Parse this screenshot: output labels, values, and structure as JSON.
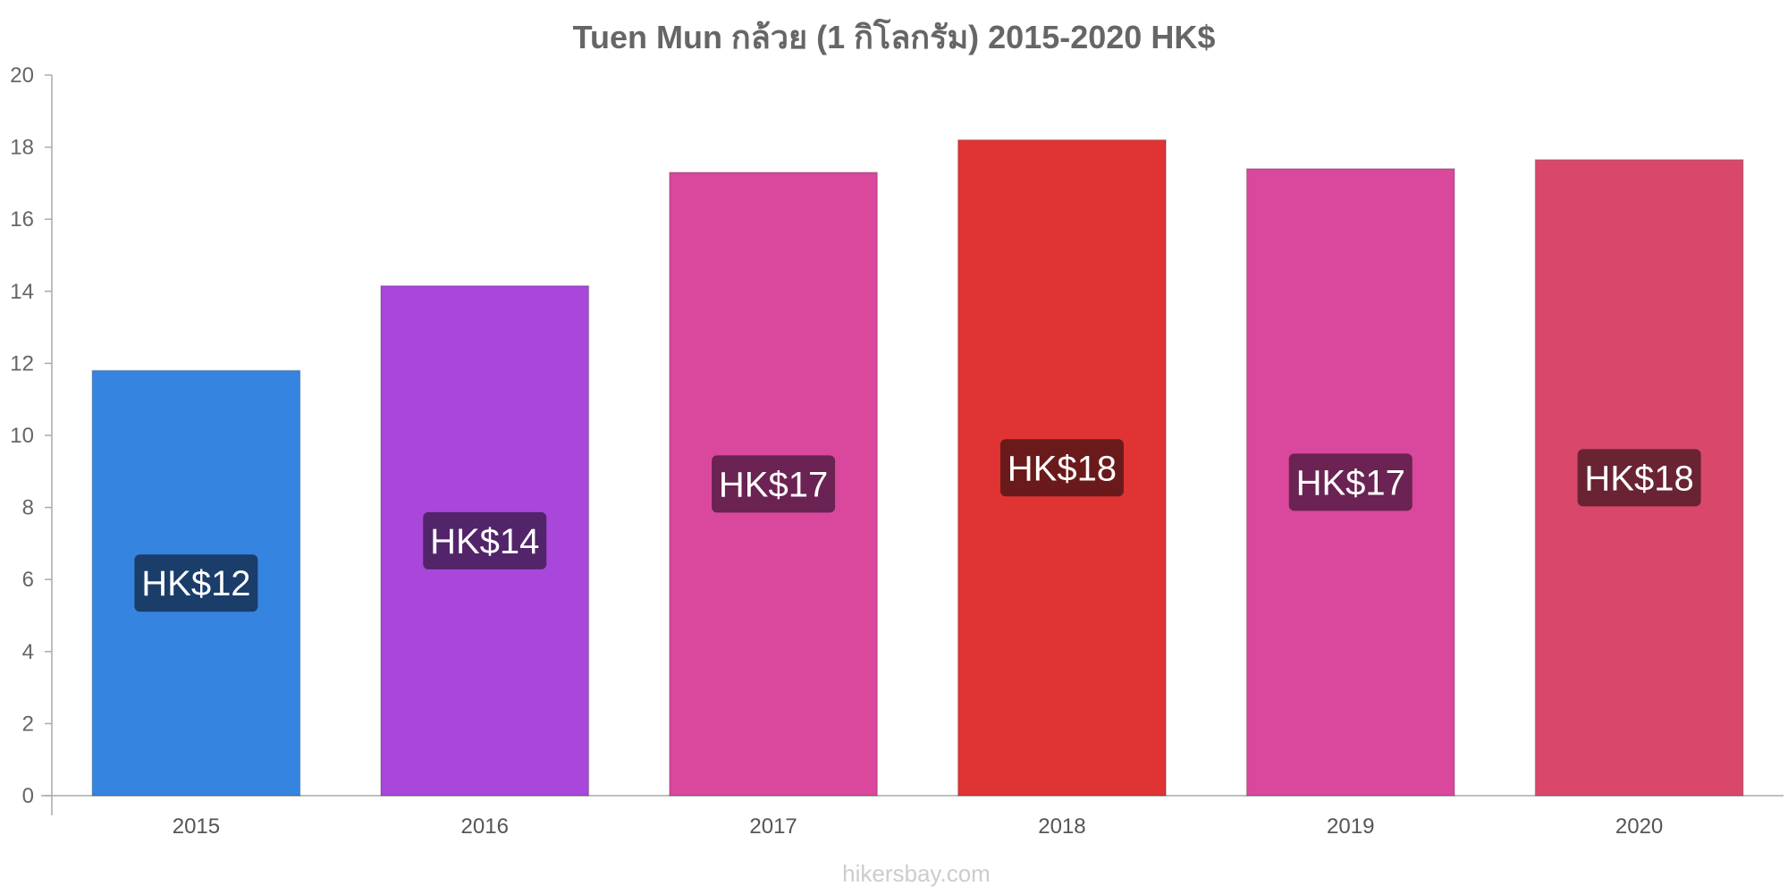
{
  "chart_data": {
    "type": "bar",
    "title": "Tuen Mun กล้วย (1 กิโลกรัม) 2015-2020 HK$",
    "xlabel": "",
    "ylabel": "",
    "categories": [
      "2015",
      "2016",
      "2017",
      "2018",
      "2019",
      "2020"
    ],
    "values": [
      11.8,
      14.15,
      17.3,
      18.2,
      17.4,
      17.65
    ],
    "data_labels": [
      "HK$12",
      "HK$14",
      "HK$17",
      "HK$18",
      "HK$17",
      "HK$18"
    ],
    "bar_colors": [
      "#3584e0",
      "#a847d9",
      "#d9489d",
      "#e03434",
      "#d9489d",
      "#d9486a"
    ],
    "label_colors": [
      "#1b3d6a",
      "#52246a",
      "#6a2352",
      "#6a1a1a",
      "#6a2352",
      "#6a2333"
    ],
    "ylim": [
      0,
      20
    ],
    "yticks": [
      0,
      2,
      4,
      6,
      8,
      10,
      12,
      14,
      16,
      18,
      20
    ],
    "grid": false,
    "legend": "none"
  },
  "watermark": "hikersbay.com"
}
